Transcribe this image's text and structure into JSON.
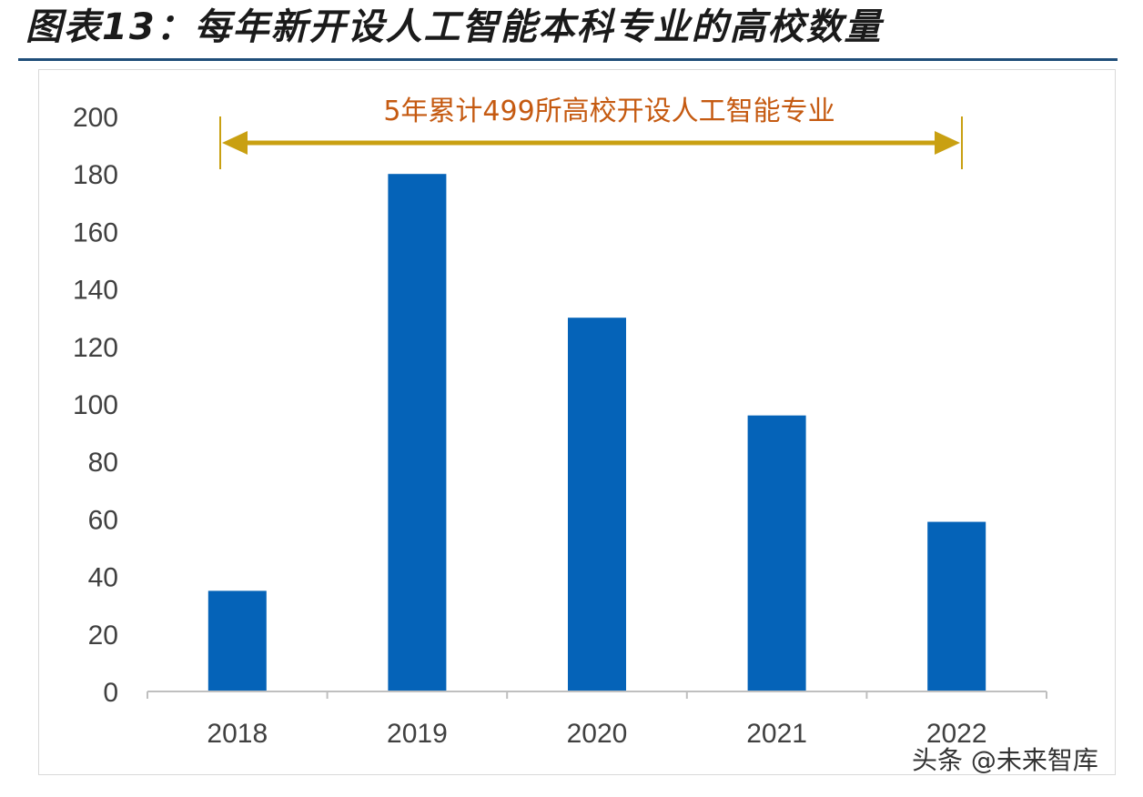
{
  "figure": {
    "title": "图表13：每年新开设人工智能本科专业的高校数量",
    "watermark": "头条 @未来智库"
  },
  "colors": {
    "bar": "#0563b8",
    "annotation_text": "#c55a11",
    "annotation_arrow": "#c9a012",
    "axis": "#bfbfbf",
    "title_rule": "#1f4e79"
  },
  "chart_data": {
    "type": "bar",
    "title": "",
    "xlabel": "",
    "ylabel": "",
    "categories": [
      "2018",
      "2019",
      "2020",
      "2021",
      "2022"
    ],
    "values": [
      35,
      180,
      130,
      96,
      59
    ],
    "ylim": [
      0,
      200
    ],
    "yticks": [
      0,
      20,
      40,
      60,
      80,
      100,
      120,
      140,
      160,
      180,
      200
    ],
    "grid": false,
    "annotation": {
      "text": "5年累计499所高校开设人工智能专业",
      "from_category": "2018",
      "to_category": "2022"
    }
  }
}
